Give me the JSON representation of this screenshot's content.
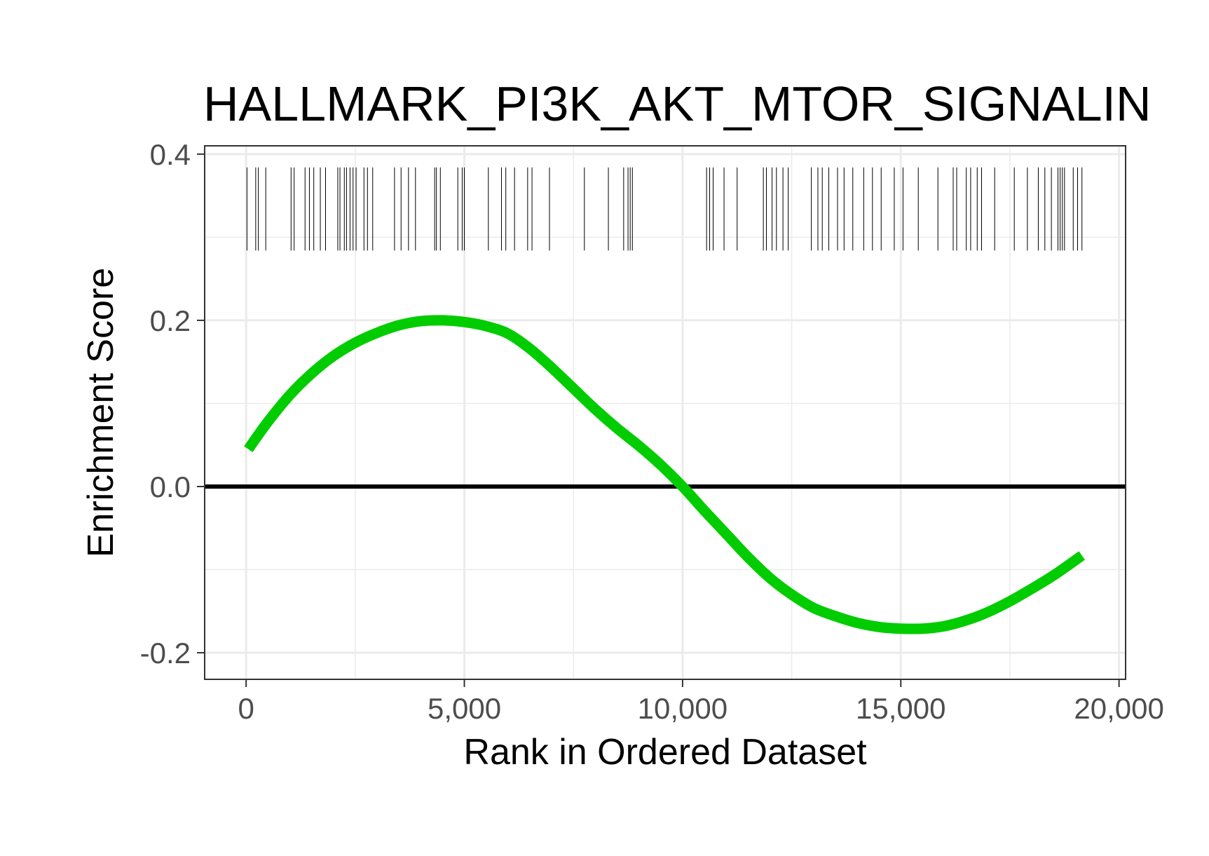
{
  "chart_data": {
    "type": "line",
    "title": "HALLMARK_PI3K_AKT_MTOR_SIGNALIN",
    "xlabel": "Rank in Ordered Dataset",
    "ylabel": "Enrichment Score",
    "xlim": [
      -950,
      20150
    ],
    "ylim": [
      -0.232,
      0.41
    ],
    "x_ticks": [
      0,
      5000,
      10000,
      15000,
      20000
    ],
    "x_tick_labels": [
      "0",
      "5,000",
      "10,000",
      "15,000",
      "20,000"
    ],
    "y_ticks": [
      -0.2,
      0.0,
      0.2,
      0.4
    ],
    "y_tick_labels": [
      "-0.2",
      "0.0",
      "0.2",
      "0.4"
    ],
    "x_minor_ticks": [
      2500,
      7500,
      12500,
      17500
    ],
    "y_minor_ticks": [
      -0.1,
      0.1,
      0.3
    ],
    "grid": true,
    "legend": "none",
    "reference_line_y": 0.0,
    "series": [
      {
        "color": "#00cc00",
        "x": [
          50,
          500,
          1000,
          1500,
          2000,
          2500,
          3000,
          3500,
          4000,
          4500,
          5000,
          5500,
          6000,
          6500,
          7000,
          7500,
          8000,
          8500,
          9000,
          9500,
          10000,
          10500,
          11000,
          11500,
          12000,
          12500,
          13000,
          13500,
          14000,
          14500,
          15000,
          15500,
          16000,
          16500,
          17000,
          17500,
          18000,
          18500,
          19150
        ],
        "y": [
          0.045,
          0.078,
          0.11,
          0.136,
          0.157,
          0.173,
          0.185,
          0.194,
          0.199,
          0.2,
          0.198,
          0.193,
          0.184,
          0.166,
          0.143,
          0.118,
          0.093,
          0.07,
          0.049,
          0.026,
          0.0,
          -0.029,
          -0.057,
          -0.085,
          -0.11,
          -0.13,
          -0.146,
          -0.156,
          -0.164,
          -0.169,
          -0.171,
          -0.171,
          -0.168,
          -0.161,
          -0.151,
          -0.138,
          -0.123,
          -0.107,
          -0.083
        ]
      }
    ],
    "gene_hits": {
      "color": "#000000",
      "y_range": [
        0.284,
        0.384
      ],
      "positions": [
        20,
        220,
        280,
        450,
        1030,
        1100,
        1350,
        1450,
        1550,
        1700,
        1820,
        2100,
        2150,
        2250,
        2300,
        2380,
        2450,
        2520,
        2700,
        2780,
        2900,
        3400,
        3550,
        3720,
        3880,
        4320,
        4360,
        4450,
        4850,
        4950,
        5000,
        5550,
        5850,
        5950,
        6150,
        6450,
        6550,
        6950,
        7750,
        8300,
        8650,
        8750,
        8800,
        8850,
        10550,
        10620,
        10700,
        10950,
        11250,
        11850,
        11920,
        12050,
        12150,
        12300,
        12420,
        12950,
        13100,
        13200,
        13350,
        13550,
        13700,
        13900,
        14150,
        14350,
        14550,
        14850,
        15050,
        15400,
        15850,
        16200,
        16280,
        16500,
        16600,
        16750,
        16850,
        17150,
        17600,
        17900,
        18150,
        18300,
        18450,
        18600,
        18650,
        18700,
        18750,
        18950,
        19050,
        19150
      ]
    }
  }
}
